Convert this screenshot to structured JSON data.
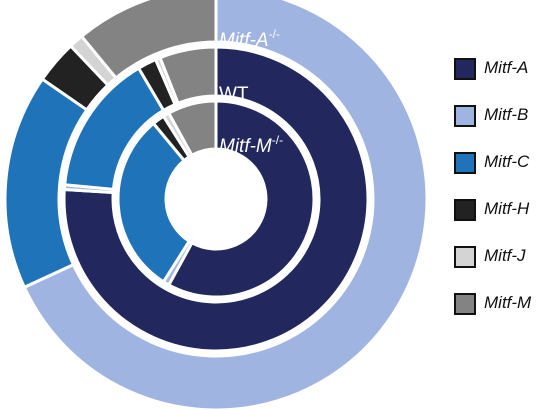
{
  "chart_data": {
    "type": "donut",
    "title": "",
    "rings": [
      {
        "name": "Mitf-A",
        "superscript": "-/-",
        "label_prefix": "Mitf-A",
        "values": [
          0,
          62,
          15,
          3,
          1,
          10
        ]
      },
      {
        "name": "WT",
        "superscript": "",
        "label_prefix": "WT",
        "values": [
          76,
          0.5,
          15,
          2,
          0.5,
          6
        ]
      },
      {
        "name": "Mitf-M",
        "superscript": "-/-",
        "label_prefix": "Mitf-M",
        "values": [
          58,
          1,
          30,
          2,
          1,
          8
        ]
      }
    ],
    "categories": [
      "Mitf-A",
      "Mitf-B",
      "Mitf-C",
      "Mitf-H",
      "Mitf-J",
      "Mitf-M"
    ],
    "colors": [
      "#22285e",
      "#9fb4e0",
      "#1f73b8",
      "#222222",
      "#d4d4d4",
      "#838383"
    ],
    "legend_position": "right",
    "direction": "clockwise-from-top"
  },
  "legend": {
    "items": [
      {
        "label": "Mitf-A",
        "color": "#22285e"
      },
      {
        "label": "Mitf-B",
        "color": "#9fb4e0"
      },
      {
        "label": "Mitf-C",
        "color": "#1f73b8"
      },
      {
        "label": "Mitf-H",
        "color": "#222222"
      },
      {
        "label": "Mitf-J",
        "color": "#d4d4d4"
      },
      {
        "label": "Mitf-M",
        "color": "#838383"
      }
    ]
  }
}
